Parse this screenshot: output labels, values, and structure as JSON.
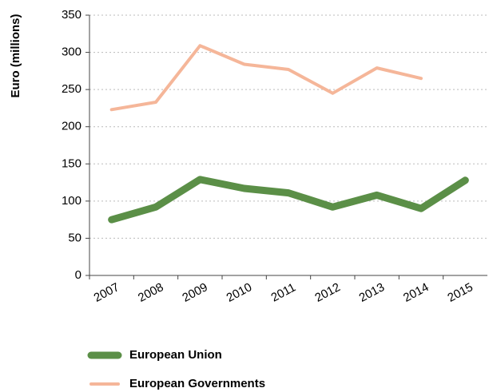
{
  "chart_data": {
    "type": "line",
    "y_label": "Euro (millions)",
    "categories": [
      "2007",
      "2008",
      "2009",
      "2010",
      "2011",
      "2012",
      "2013",
      "2014",
      "2015"
    ],
    "series": [
      {
        "name": "European Union",
        "color": "#5b8f47",
        "values": [
          75,
          92,
          129,
          117,
          111,
          92,
          108,
          90,
          128
        ]
      },
      {
        "name": "European Governments",
        "color": "#f5b699",
        "values": [
          223,
          233,
          309,
          284,
          277,
          245,
          279,
          265,
          null
        ]
      }
    ],
    "ylim": [
      0,
      350
    ],
    "yticks": [
      0,
      50,
      100,
      150,
      200,
      250,
      300,
      350
    ],
    "grid": true
  }
}
